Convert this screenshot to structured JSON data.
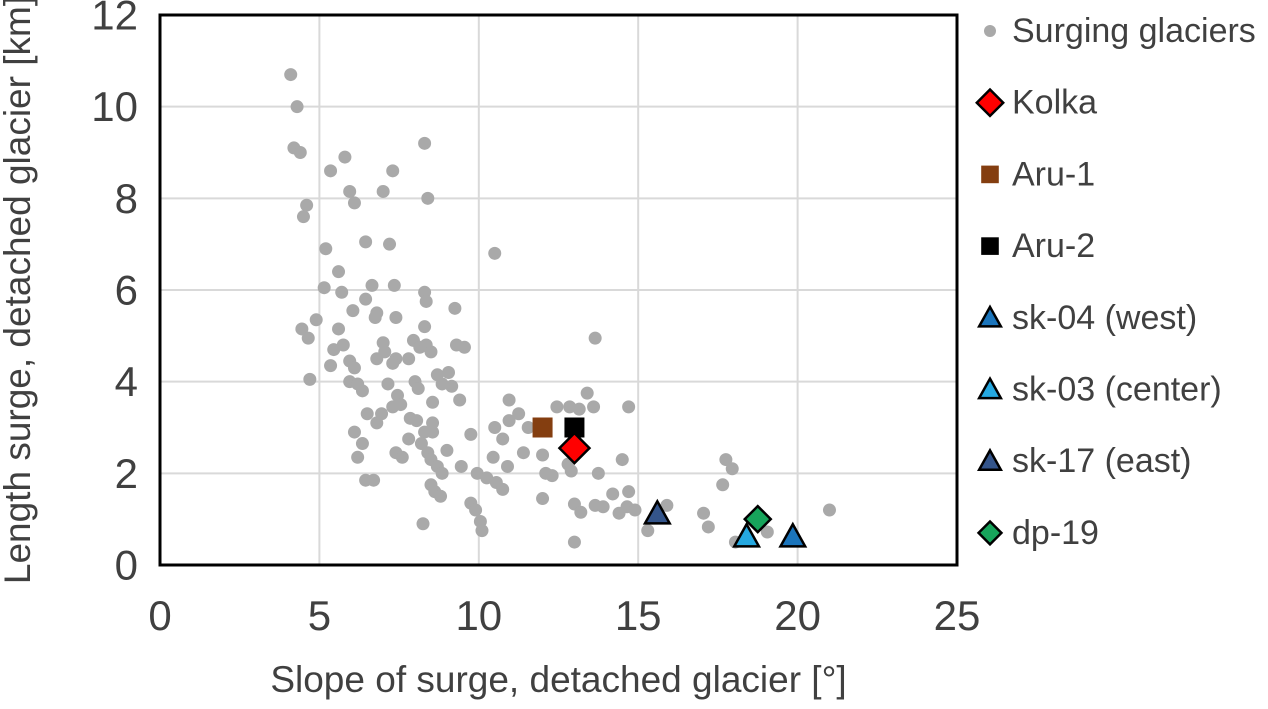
{
  "chart_data": {
    "type": "scatter",
    "title": "",
    "xlabel": "Slope of surge, detached glacier [°]",
    "ylabel": "Length surge, detached glacier [km]",
    "xlim": [
      0,
      25
    ],
    "ylim": [
      0,
      12
    ],
    "xticks": [
      0,
      5,
      10,
      15,
      20,
      25
    ],
    "yticks": [
      0,
      2,
      4,
      6,
      8,
      10,
      12
    ],
    "grid": true,
    "gridline_color": "#D9D9D9",
    "frame_color": "#000000",
    "text_color": "#404040",
    "legend_position": "right",
    "draw_order": [
      0,
      2,
      3,
      1,
      6,
      7,
      5,
      4
    ],
    "series": [
      {
        "name": "Surging glaciers",
        "marker": "circle",
        "color": "#A9A9A9",
        "outline": "none",
        "size": 6.5,
        "points": [
          [
            4.1,
            10.7
          ],
          [
            4.3,
            10.0
          ],
          [
            4.2,
            9.1
          ],
          [
            4.4,
            9.0
          ],
          [
            5.8,
            8.9
          ],
          [
            5.35,
            8.6
          ],
          [
            8.3,
            9.2
          ],
          [
            7.3,
            8.6
          ],
          [
            7.0,
            8.15
          ],
          [
            5.95,
            8.15
          ],
          [
            6.1,
            7.9
          ],
          [
            8.4,
            8.0
          ],
          [
            4.6,
            7.85
          ],
          [
            4.5,
            7.6
          ],
          [
            5.2,
            6.9
          ],
          [
            6.45,
            7.05
          ],
          [
            7.2,
            7.0
          ],
          [
            5.6,
            6.4
          ],
          [
            7.35,
            6.1
          ],
          [
            6.65,
            6.1
          ],
          [
            10.5,
            6.8
          ],
          [
            5.15,
            6.05
          ],
          [
            5.7,
            5.95
          ],
          [
            6.45,
            5.8
          ],
          [
            6.05,
            5.55
          ],
          [
            6.75,
            5.4
          ],
          [
            4.45,
            5.15
          ],
          [
            4.9,
            5.35
          ],
          [
            4.65,
            4.95
          ],
          [
            5.6,
            5.15
          ],
          [
            5.75,
            4.8
          ],
          [
            5.45,
            4.7
          ],
          [
            5.35,
            4.35
          ],
          [
            5.95,
            4.45
          ],
          [
            6.1,
            4.3
          ],
          [
            4.7,
            4.05
          ],
          [
            5.95,
            4.0
          ],
          [
            6.2,
            3.95
          ],
          [
            6.35,
            3.8
          ],
          [
            7.0,
            4.85
          ],
          [
            7.05,
            4.65
          ],
          [
            6.8,
            4.5
          ],
          [
            6.5,
            3.3
          ],
          [
            6.8,
            3.1
          ],
          [
            6.1,
            2.9
          ],
          [
            6.35,
            2.65
          ],
          [
            6.2,
            2.35
          ],
          [
            6.45,
            1.85
          ],
          [
            6.7,
            1.85
          ],
          [
            6.8,
            5.5
          ],
          [
            7.4,
            5.4
          ],
          [
            8.3,
            5.95
          ],
          [
            8.35,
            5.75
          ],
          [
            8.3,
            5.2
          ],
          [
            9.25,
            5.6
          ],
          [
            7.95,
            4.9
          ],
          [
            8.15,
            4.75
          ],
          [
            8.35,
            4.8
          ],
          [
            8.5,
            4.65
          ],
          [
            9.3,
            4.8
          ],
          [
            9.55,
            4.75
          ],
          [
            7.4,
            4.5
          ],
          [
            7.8,
            4.5
          ],
          [
            7.3,
            4.4
          ],
          [
            7.15,
            3.95
          ],
          [
            8.0,
            4.0
          ],
          [
            8.1,
            3.85
          ],
          [
            8.7,
            4.15
          ],
          [
            9.05,
            4.2
          ],
          [
            8.85,
            3.95
          ],
          [
            9.15,
            3.9
          ],
          [
            7.45,
            3.7
          ],
          [
            9.4,
            3.6
          ],
          [
            7.55,
            3.5
          ],
          [
            8.55,
            3.55
          ],
          [
            7.3,
            3.45
          ],
          [
            6.95,
            3.3
          ],
          [
            7.85,
            3.2
          ],
          [
            8.05,
            3.15
          ],
          [
            8.55,
            3.1
          ],
          [
            10.95,
            3.6
          ],
          [
            11.25,
            3.3
          ],
          [
            10.95,
            3.15
          ],
          [
            12.45,
            3.45
          ],
          [
            12.85,
            3.45
          ],
          [
            13.15,
            3.4
          ],
          [
            13.6,
            3.45
          ],
          [
            13.4,
            3.75
          ],
          [
            10.5,
            3.0
          ],
          [
            11.55,
            3.0
          ],
          [
            13.65,
            4.95
          ],
          [
            14.7,
            3.45
          ],
          [
            8.3,
            2.9
          ],
          [
            8.55,
            2.9
          ],
          [
            9.75,
            2.85
          ],
          [
            10.75,
            2.75
          ],
          [
            7.8,
            2.75
          ],
          [
            8.2,
            2.65
          ],
          [
            7.4,
            2.45
          ],
          [
            7.6,
            2.35
          ],
          [
            8.4,
            2.45
          ],
          [
            8.5,
            2.3
          ],
          [
            9.0,
            2.5
          ],
          [
            8.7,
            2.15
          ],
          [
            8.85,
            2.0
          ],
          [
            9.45,
            2.15
          ],
          [
            10.45,
            2.35
          ],
          [
            10.9,
            2.15
          ],
          [
            11.4,
            2.45
          ],
          [
            12.0,
            2.4
          ],
          [
            12.1,
            2.0
          ],
          [
            12.3,
            1.95
          ],
          [
            12.8,
            2.2
          ],
          [
            12.9,
            2.05
          ],
          [
            9.95,
            2.0
          ],
          [
            10.25,
            1.9
          ],
          [
            10.55,
            1.8
          ],
          [
            10.75,
            1.65
          ],
          [
            8.5,
            1.75
          ],
          [
            8.62,
            1.6
          ],
          [
            8.8,
            1.5
          ],
          [
            9.75,
            1.35
          ],
          [
            9.9,
            1.2
          ],
          [
            10.05,
            0.95
          ],
          [
            10.1,
            0.75
          ],
          [
            8.25,
            0.9
          ],
          [
            12.0,
            1.45
          ],
          [
            13.0,
            1.33
          ],
          [
            13.2,
            1.15
          ],
          [
            13.0,
            0.5
          ],
          [
            13.75,
            2.0
          ],
          [
            14.5,
            2.3
          ],
          [
            14.2,
            1.55
          ],
          [
            14.7,
            1.6
          ],
          [
            13.65,
            1.3
          ],
          [
            13.9,
            1.27
          ],
          [
            14.4,
            1.13
          ],
          [
            14.65,
            1.27
          ],
          [
            14.9,
            1.2
          ],
          [
            15.3,
            0.75
          ],
          [
            15.9,
            1.3
          ],
          [
            17.05,
            1.13
          ],
          [
            17.2,
            0.83
          ],
          [
            17.75,
            2.3
          ],
          [
            17.95,
            2.1
          ],
          [
            17.65,
            1.75
          ],
          [
            19.05,
            0.72
          ],
          [
            18.05,
            0.5
          ],
          [
            21.0,
            1.2
          ]
        ]
      },
      {
        "name": "Kolka",
        "marker": "diamond",
        "color": "#FF0000",
        "outline": "#000000",
        "size": 15,
        "points": [
          [
            13.0,
            2.55
          ]
        ]
      },
      {
        "name": "Aru-1",
        "marker": "square",
        "color": "#843E10",
        "outline": "none",
        "size": 10,
        "points": [
          [
            12.0,
            3.0
          ]
        ]
      },
      {
        "name": "Aru-2",
        "marker": "square",
        "color": "#000000",
        "outline": "none",
        "size": 10,
        "points": [
          [
            13.0,
            3.0
          ]
        ]
      },
      {
        "name": "sk-04 (west)",
        "marker": "triangle",
        "color": "#1B75BC",
        "outline": "#000000",
        "size": 13,
        "points": [
          [
            19.85,
            0.62
          ]
        ]
      },
      {
        "name": "sk-03 (center)",
        "marker": "triangle",
        "color": "#25A8E0",
        "outline": "#000000",
        "size": 13,
        "points": [
          [
            18.4,
            0.62
          ]
        ]
      },
      {
        "name": "sk-17 (east)",
        "marker": "triangle",
        "color": "#34558B",
        "outline": "#000000",
        "size": 13,
        "points": [
          [
            15.6,
            1.12
          ]
        ]
      },
      {
        "name": "dp-19",
        "marker": "diamond",
        "color": "#17A45B",
        "outline": "#000000",
        "size": 13,
        "points": [
          [
            18.75,
            1.0
          ]
        ]
      }
    ]
  }
}
